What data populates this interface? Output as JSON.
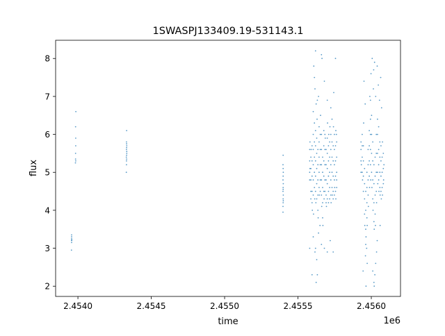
{
  "chart_data": {
    "type": "scatter",
    "title": "1SWASPJ133409.19-531143.1",
    "xlabel": "time",
    "ylabel": "flux",
    "x_offset_label": "1e6",
    "xlim": [
      2453848,
      2456199
    ],
    "ylim": [
      1.73,
      8.48
    ],
    "xticks": [
      2454000,
      2454500,
      2455000,
      2455500,
      2456000
    ],
    "xtick_labels": [
      "2.4540",
      "2.4545",
      "2.4550",
      "2.4555",
      "2.4560"
    ],
    "yticks": [
      2,
      3,
      4,
      5,
      6,
      7,
      8
    ],
    "ytick_labels": [
      "2",
      "3",
      "4",
      "5",
      "6",
      "7",
      "8"
    ],
    "grid": false,
    "color": "#1f77b4",
    "points": [
      [
        2453957,
        3.15
      ],
      [
        2453957,
        3.2
      ],
      [
        2453957,
        3.25
      ],
      [
        2453957,
        3.3
      ],
      [
        2453957,
        3.35
      ],
      [
        2453958,
        3.22
      ],
      [
        2453956,
        2.95
      ],
      [
        2453983,
        5.25
      ],
      [
        2453984,
        5.35
      ],
      [
        2453984,
        5.5
      ],
      [
        2453985,
        5.7
      ],
      [
        2453985,
        5.9
      ],
      [
        2453984,
        6.2
      ],
      [
        2453986,
        6.6
      ],
      [
        2453985,
        5.3
      ],
      [
        2454330,
        5.0
      ],
      [
        2454331,
        5.2
      ],
      [
        2454332,
        5.35
      ],
      [
        2454332,
        5.45
      ],
      [
        2454333,
        5.55
      ],
      [
        2454331,
        5.6
      ],
      [
        2454332,
        5.65
      ],
      [
        2454333,
        5.7
      ],
      [
        2454332,
        5.75
      ],
      [
        2454331,
        5.8
      ],
      [
        2454332,
        6.1
      ],
      [
        2454333,
        5.5
      ],
      [
        2454330,
        5.4
      ],
      [
        2454331,
        5.3
      ],
      [
        2455398,
        3.95
      ],
      [
        2455398,
        4.1
      ],
      [
        2455399,
        4.2
      ],
      [
        2455399,
        4.3
      ],
      [
        2455400,
        4.4
      ],
      [
        2455398,
        4.5
      ],
      [
        2455399,
        4.6
      ],
      [
        2455400,
        4.7
      ],
      [
        2455398,
        4.8
      ],
      [
        2455399,
        4.9
      ],
      [
        2455400,
        5.0
      ],
      [
        2455399,
        5.1
      ],
      [
        2455398,
        5.2
      ],
      [
        2455399,
        5.45
      ],
      [
        2455400,
        4.25
      ],
      [
        2455399,
        4.55
      ],
      [
        2455580,
        5.0
      ],
      [
        2455580,
        5.3
      ],
      [
        2455580,
        5.6
      ],
      [
        2455580,
        4.8
      ],
      [
        2455582,
        5.8
      ],
      [
        2455582,
        5.1
      ],
      [
        2455588,
        4.5
      ],
      [
        2455588,
        4.8
      ],
      [
        2455588,
        5.1
      ],
      [
        2455588,
        5.4
      ],
      [
        2455588,
        4.3
      ],
      [
        2455590,
        5.6
      ],
      [
        2455596,
        4.2
      ],
      [
        2455596,
        4.5
      ],
      [
        2455596,
        4.9
      ],
      [
        2455596,
        5.3
      ],
      [
        2455596,
        5.7
      ],
      [
        2455598,
        4.0
      ],
      [
        2455604,
        4.4
      ],
      [
        2455604,
        4.8
      ],
      [
        2455604,
        5.2
      ],
      [
        2455604,
        5.6
      ],
      [
        2455604,
        6.0
      ],
      [
        2455606,
        3.9
      ],
      [
        2455612,
        4.6
      ],
      [
        2455612,
        5.0
      ],
      [
        2455612,
        5.4
      ],
      [
        2455612,
        5.8
      ],
      [
        2455612,
        6.3
      ],
      [
        2455614,
        4.3
      ],
      [
        2455620,
        4.5
      ],
      [
        2455620,
        4.9
      ],
      [
        2455620,
        5.3
      ],
      [
        2455620,
        5.7
      ],
      [
        2455620,
        6.1
      ],
      [
        2455622,
        4.2
      ],
      [
        2455628,
        4.3
      ],
      [
        2455628,
        4.7
      ],
      [
        2455628,
        5.1
      ],
      [
        2455628,
        5.5
      ],
      [
        2455628,
        5.9
      ],
      [
        2455630,
        6.4
      ],
      [
        2455636,
        4.0
      ],
      [
        2455636,
        4.4
      ],
      [
        2455636,
        4.8
      ],
      [
        2455636,
        5.2
      ],
      [
        2455636,
        5.6
      ],
      [
        2455638,
        3.8
      ],
      [
        2455644,
        4.6
      ],
      [
        2455644,
        5.0
      ],
      [
        2455644,
        5.4
      ],
      [
        2455644,
        5.8
      ],
      [
        2455644,
        6.2
      ],
      [
        2455646,
        4.4
      ],
      [
        2455652,
        4.8
      ],
      [
        2455652,
        5.2
      ],
      [
        2455652,
        5.6
      ],
      [
        2455652,
        6.0
      ],
      [
        2455652,
        4.5
      ],
      [
        2455654,
        6.5
      ],
      [
        2455660,
        4.4
      ],
      [
        2455660,
        4.8
      ],
      [
        2455660,
        5.2
      ],
      [
        2455660,
        5.6
      ],
      [
        2455660,
        6.0
      ],
      [
        2455662,
        4.1
      ],
      [
        2455668,
        3.8
      ],
      [
        2455668,
        4.2
      ],
      [
        2455668,
        4.6
      ],
      [
        2455668,
        5.0
      ],
      [
        2455668,
        5.4
      ],
      [
        2455670,
        3.6
      ],
      [
        2455676,
        4.5
      ],
      [
        2455676,
        4.9
      ],
      [
        2455676,
        5.3
      ],
      [
        2455676,
        5.7
      ],
      [
        2455676,
        6.1
      ],
      [
        2455678,
        4.3
      ],
      [
        2455684,
        4.8
      ],
      [
        2455684,
        5.2
      ],
      [
        2455684,
        5.6
      ],
      [
        2455684,
        4.5
      ],
      [
        2455684,
        6.0
      ],
      [
        2455686,
        5.9
      ],
      [
        2455692,
        4.4
      ],
      [
        2455692,
        4.8
      ],
      [
        2455692,
        5.2
      ],
      [
        2455692,
        5.6
      ],
      [
        2455692,
        4.2
      ],
      [
        2455694,
        4.1
      ],
      [
        2455700,
        4.3
      ],
      [
        2455700,
        4.7
      ],
      [
        2455700,
        5.1
      ],
      [
        2455700,
        5.5
      ],
      [
        2455700,
        5.9
      ],
      [
        2455702,
        6.3
      ],
      [
        2455708,
        4.5
      ],
      [
        2455708,
        4.9
      ],
      [
        2455708,
        5.3
      ],
      [
        2455708,
        5.7
      ],
      [
        2455708,
        4.2
      ],
      [
        2455710,
        6.0
      ],
      [
        2455716,
        4.6
      ],
      [
        2455716,
        5.0
      ],
      [
        2455716,
        5.4
      ],
      [
        2455716,
        5.8
      ],
      [
        2455716,
        4.3
      ],
      [
        2455718,
        6.2
      ],
      [
        2455724,
        4.4
      ],
      [
        2455724,
        4.8
      ],
      [
        2455724,
        5.2
      ],
      [
        2455724,
        5.6
      ],
      [
        2455724,
        6.0
      ],
      [
        2455726,
        4.2
      ],
      [
        2455732,
        4.6
      ],
      [
        2455732,
        5.0
      ],
      [
        2455732,
        5.4
      ],
      [
        2455732,
        5.8
      ],
      [
        2455732,
        6.4
      ],
      [
        2455734,
        4.4
      ],
      [
        2455740,
        4.5
      ],
      [
        2455740,
        4.9
      ],
      [
        2455740,
        5.3
      ],
      [
        2455740,
        4.3
      ],
      [
        2455740,
        5.7
      ],
      [
        2455742,
        6.2
      ],
      [
        2455748,
        4.4
      ],
      [
        2455748,
        4.8
      ],
      [
        2455748,
        5.2
      ],
      [
        2455748,
        5.6
      ],
      [
        2455748,
        6.0
      ],
      [
        2455750,
        4.6
      ],
      [
        2455756,
        4.5
      ],
      [
        2455756,
        4.9
      ],
      [
        2455756,
        5.3
      ],
      [
        2455756,
        5.7
      ],
      [
        2455758,
        6.1
      ],
      [
        2455758,
        4.3
      ],
      [
        2455764,
        4.6
      ],
      [
        2455764,
        5.0
      ],
      [
        2455764,
        5.4
      ],
      [
        2455764,
        5.8
      ],
      [
        2455764,
        4.8
      ],
      [
        2455762,
        6.0
      ],
      [
        2455608,
        7.8
      ],
      [
        2455612,
        7.5
      ],
      [
        2455616,
        7.2
      ],
      [
        2455620,
        8.2
      ],
      [
        2455624,
        6.8
      ],
      [
        2455604,
        6.6
      ],
      [
        2455640,
        7.0
      ],
      [
        2455660,
        8.1
      ],
      [
        2455664,
        8.0
      ],
      [
        2455680,
        7.4
      ],
      [
        2455700,
        6.9
      ],
      [
        2455724,
        6.7
      ],
      [
        2455744,
        7.1
      ],
      [
        2455756,
        8.0
      ],
      [
        2455632,
        6.9
      ],
      [
        2455604,
        3.3
      ],
      [
        2455616,
        2.9
      ],
      [
        2455620,
        3.0
      ],
      [
        2455628,
        2.7
      ],
      [
        2455632,
        2.3
      ],
      [
        2455640,
        3.4
      ],
      [
        2455660,
        3.1
      ],
      [
        2455680,
        3.0
      ],
      [
        2455700,
        2.9
      ],
      [
        2455740,
        2.9
      ],
      [
        2455580,
        3.0
      ],
      [
        2455596,
        2.3
      ],
      [
        2455624,
        2.1
      ],
      [
        2455650,
        3.6
      ],
      [
        2455720,
        3.2
      ],
      [
        2455930,
        5.0
      ],
      [
        2455930,
        5.3
      ],
      [
        2455930,
        5.6
      ],
      [
        2455930,
        5.8
      ],
      [
        2455932,
        5.2
      ],
      [
        2455938,
        5.0
      ],
      [
        2455938,
        5.4
      ],
      [
        2455938,
        5.7
      ],
      [
        2455938,
        6.0
      ],
      [
        2455940,
        4.8
      ],
      [
        2455946,
        4.5
      ],
      [
        2455946,
        4.9
      ],
      [
        2455946,
        5.3
      ],
      [
        2455946,
        5.7
      ],
      [
        2455948,
        6.3
      ],
      [
        2455954,
        3.9
      ],
      [
        2455954,
        4.3
      ],
      [
        2455954,
        4.7
      ],
      [
        2455954,
        5.1
      ],
      [
        2455956,
        3.6
      ],
      [
        2455962,
        3.1
      ],
      [
        2455962,
        3.5
      ],
      [
        2455962,
        4.0
      ],
      [
        2455962,
        4.5
      ],
      [
        2455964,
        3.3
      ],
      [
        2455970,
        3.8
      ],
      [
        2455970,
        4.2
      ],
      [
        2455970,
        4.6
      ],
      [
        2455970,
        5.0
      ],
      [
        2455972,
        3.6
      ],
      [
        2455978,
        4.4
      ],
      [
        2455978,
        4.8
      ],
      [
        2455978,
        5.2
      ],
      [
        2455978,
        5.6
      ],
      [
        2455980,
        4.1
      ],
      [
        2455986,
        4.9
      ],
      [
        2455986,
        5.3
      ],
      [
        2455986,
        5.7
      ],
      [
        2455986,
        6.1
      ],
      [
        2455988,
        4.6
      ],
      [
        2455994,
        5.2
      ],
      [
        2455994,
        5.6
      ],
      [
        2455994,
        6.0
      ],
      [
        2455994,
        6.4
      ],
      [
        2455996,
        4.8
      ],
      [
        2456002,
        5.0
      ],
      [
        2456002,
        5.5
      ],
      [
        2456002,
        6.0
      ],
      [
        2456002,
        6.5
      ],
      [
        2456004,
        4.6
      ],
      [
        2456010,
        4.3
      ],
      [
        2456010,
        4.8
      ],
      [
        2456010,
        5.3
      ],
      [
        2456010,
        5.8
      ],
      [
        2456012,
        4.0
      ],
      [
        2456018,
        3.7
      ],
      [
        2456018,
        4.2
      ],
      [
        2456018,
        4.7
      ],
      [
        2456018,
        5.2
      ],
      [
        2456020,
        3.5
      ],
      [
        2456026,
        3.9
      ],
      [
        2456026,
        4.4
      ],
      [
        2456026,
        4.9
      ],
      [
        2456026,
        5.4
      ],
      [
        2456028,
        3.6
      ],
      [
        2456034,
        4.5
      ],
      [
        2456034,
        5.0
      ],
      [
        2456034,
        5.5
      ],
      [
        2456034,
        6.0
      ],
      [
        2456036,
        4.2
      ],
      [
        2456042,
        5.0
      ],
      [
        2456042,
        5.5
      ],
      [
        2456042,
        6.0
      ],
      [
        2456042,
        6.4
      ],
      [
        2456044,
        4.7
      ],
      [
        2456050,
        4.8
      ],
      [
        2456050,
        5.2
      ],
      [
        2456050,
        5.6
      ],
      [
        2456050,
        6.2
      ],
      [
        2456052,
        4.5
      ],
      [
        2456058,
        4.6
      ],
      [
        2456058,
        5.0
      ],
      [
        2456058,
        5.4
      ],
      [
        2456058,
        5.8
      ],
      [
        2456060,
        4.4
      ],
      [
        2456066,
        4.5
      ],
      [
        2456066,
        4.9
      ],
      [
        2456066,
        5.3
      ],
      [
        2456066,
        5.7
      ],
      [
        2456068,
        4.3
      ],
      [
        2456074,
        4.6
      ],
      [
        2456074,
        5.0
      ],
      [
        2456074,
        5.4
      ],
      [
        2456076,
        5.8
      ],
      [
        2456076,
        4.4
      ],
      [
        2456082,
        4.7
      ],
      [
        2456082,
        5.1
      ],
      [
        2456082,
        5.5
      ],
      [
        2456084,
        4.8
      ],
      [
        2456086,
        5.2
      ],
      [
        2455950,
        7.4
      ],
      [
        2455958,
        6.8
      ],
      [
        2455990,
        7.0
      ],
      [
        2455998,
        7.6
      ],
      [
        2456006,
        8.0
      ],
      [
        2456014,
        7.2
      ],
      [
        2456022,
        7.9
      ],
      [
        2456030,
        7.0
      ],
      [
        2456040,
        7.8
      ],
      [
        2456048,
        7.3
      ],
      [
        2456056,
        6.9
      ],
      [
        2456064,
        7.5
      ],
      [
        2456070,
        6.7
      ],
      [
        2456016,
        7.7
      ],
      [
        2455994,
        6.9
      ],
      [
        2455944,
        2.4
      ],
      [
        2455960,
        2.8
      ],
      [
        2455964,
        2.0
      ],
      [
        2455972,
        2.6
      ],
      [
        2456010,
        2.4
      ],
      [
        2456018,
        2.1
      ],
      [
        2456024,
        2.3
      ],
      [
        2456030,
        2.6
      ],
      [
        2456036,
        2.9
      ],
      [
        2456020,
        2.0
      ],
      [
        2455968,
        3.0
      ],
      [
        2456040,
        3.2
      ],
      [
        2456060,
        3.6
      ]
    ]
  }
}
